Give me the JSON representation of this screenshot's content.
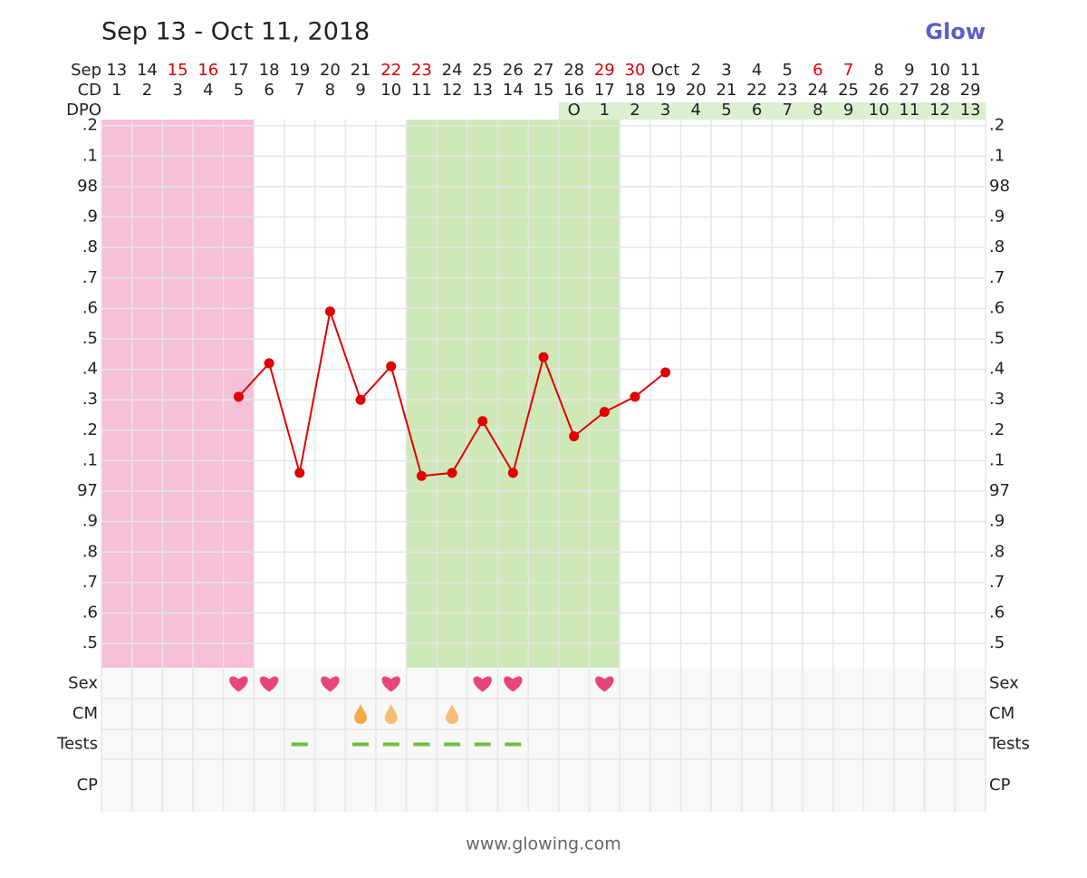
{
  "chart_data": {
    "type": "line",
    "title": "Sep 13 - Oct 11, 2018",
    "logo": "Glow",
    "footer": "www.glowing.com",
    "date_label": "Sep",
    "cd_label": "CD",
    "dpo_label": "DPO",
    "dates": [
      "13",
      "14",
      "15",
      "16",
      "17",
      "18",
      "19",
      "20",
      "21",
      "22",
      "23",
      "24",
      "25",
      "26",
      "27",
      "28",
      "29",
      "30",
      "Oct",
      "2",
      "3",
      "4",
      "5",
      "6",
      "7",
      "8",
      "9",
      "10",
      "11"
    ],
    "date_colors": [
      "#222",
      "#222",
      "#d00",
      "#d00",
      "#222",
      "#222",
      "#222",
      "#222",
      "#222",
      "#d00",
      "#d00",
      "#222",
      "#222",
      "#222",
      "#222",
      "#222",
      "#d00",
      "#d00",
      "#222",
      "#222",
      "#222",
      "#222",
      "#222",
      "#d00",
      "#d00",
      "#222",
      "#222",
      "#222",
      "#222"
    ],
    "cd": [
      "1",
      "2",
      "3",
      "4",
      "5",
      "6",
      "7",
      "8",
      "9",
      "10",
      "11",
      "12",
      "13",
      "14",
      "15",
      "16",
      "17",
      "18",
      "19",
      "20",
      "21",
      "22",
      "23",
      "24",
      "25",
      "26",
      "27",
      "28",
      "29"
    ],
    "dpo": [
      null,
      null,
      null,
      null,
      null,
      null,
      null,
      null,
      null,
      null,
      null,
      null,
      null,
      null,
      null,
      "O",
      "1",
      "2",
      "3",
      "4",
      "5",
      "6",
      "7",
      "8",
      "9",
      "10",
      "11",
      "12",
      "13"
    ],
    "dpo_color": "#dcefcf",
    "series": [
      {
        "name": "Temperature",
        "color": "#e00000",
        "values": [
          null,
          null,
          null,
          null,
          97.31,
          97.42,
          97.06,
          97.59,
          97.3,
          97.41,
          97.05,
          97.06,
          97.23,
          97.06,
          97.44,
          97.18,
          97.26,
          97.31,
          97.39,
          null,
          null,
          null,
          null,
          null,
          null,
          null,
          null,
          null,
          null
        ]
      }
    ],
    "bands": [
      {
        "start": 0,
        "end": 4,
        "color": "#f5c0d8"
      },
      {
        "start": 10,
        "end": 16,
        "color": "#cfe8b8"
      }
    ],
    "ylim": [
      96.42,
      98.22
    ],
    "yticks": [
      {
        "value": 98.2,
        "label": ".2"
      },
      {
        "value": 98.1,
        "label": ".1"
      },
      98,
      {
        "value": 97.9,
        "label": ".9"
      },
      {
        "value": 97.8,
        "label": ".8"
      },
      {
        "value": 97.7,
        "label": ".7"
      },
      {
        "value": 97.6,
        "label": ".6"
      },
      {
        "value": 97.5,
        "label": ".5"
      },
      {
        "value": 97.4,
        "label": ".4"
      },
      {
        "value": 97.3,
        "label": ".3"
      },
      {
        "value": 97.2,
        "label": ".2"
      },
      {
        "value": 97.1,
        "label": ".1"
      },
      97,
      {
        "value": 96.9,
        "label": ".9"
      },
      {
        "value": 96.8,
        "label": ".8"
      },
      {
        "value": 96.7,
        "label": ".7"
      },
      {
        "value": 96.6,
        "label": ".6"
      },
      {
        "value": 96.5,
        "label": ".5"
      }
    ],
    "grid": true,
    "rows": [
      {
        "name": "Sex",
        "icon": "heart",
        "color": "#e8457f",
        "marks": [
          4,
          5,
          7,
          9,
          12,
          13,
          16
        ]
      },
      {
        "name": "CM",
        "icon": "drop",
        "color": "#f4a94a",
        "marks": [
          8,
          9,
          11
        ]
      },
      {
        "name": "Tests",
        "icon": "dash",
        "color": "#6cbf3a",
        "marks": [
          6,
          8,
          9,
          10,
          11,
          12,
          13
        ]
      },
      {
        "name": "CP",
        "icon": "dash",
        "color": "#888",
        "marks": []
      }
    ]
  }
}
